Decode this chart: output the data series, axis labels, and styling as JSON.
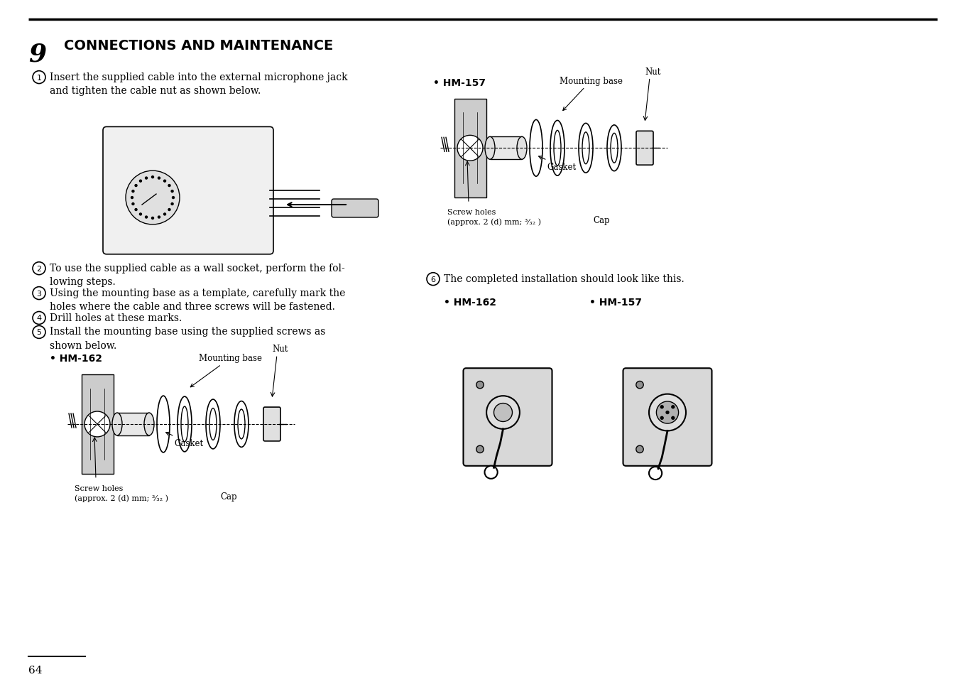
{
  "title_number": "9",
  "title_text": "CONNECTIONS AND MAINTENANCE",
  "page_number": "64",
  "background_color": "#ffffff",
  "text_color": "#000000",
  "step1": "Insert the supplied cable into the external microphone jack\nand tighten the cable nut as shown below.",
  "step2": "To use the supplied cable as a wall socket, perform the fol-\nlowing steps.",
  "step3": "Using the mounting base as a template, carefully mark the\nholes where the cable and three screws will be fastened.",
  "step4": "Drill holes at these marks.",
  "step5": "Install the mounting base using the supplied screws as\nshown below.",
  "hm162_label": "• HM-162",
  "hm157_label": "• HM-157",
  "hm162_label2": "• HM-162",
  "hm157_label2": "• HM-157",
  "step6": "The completed installation should look like this.",
  "mounting_base_label": "Mounting base",
  "nut_label": "Nut",
  "gasket_label": "Gasket",
  "screw_holes_label": "Screw holes\n(approx. 2 (d) mm; ³⁄₃₂ )",
  "cap_label": "Cap"
}
